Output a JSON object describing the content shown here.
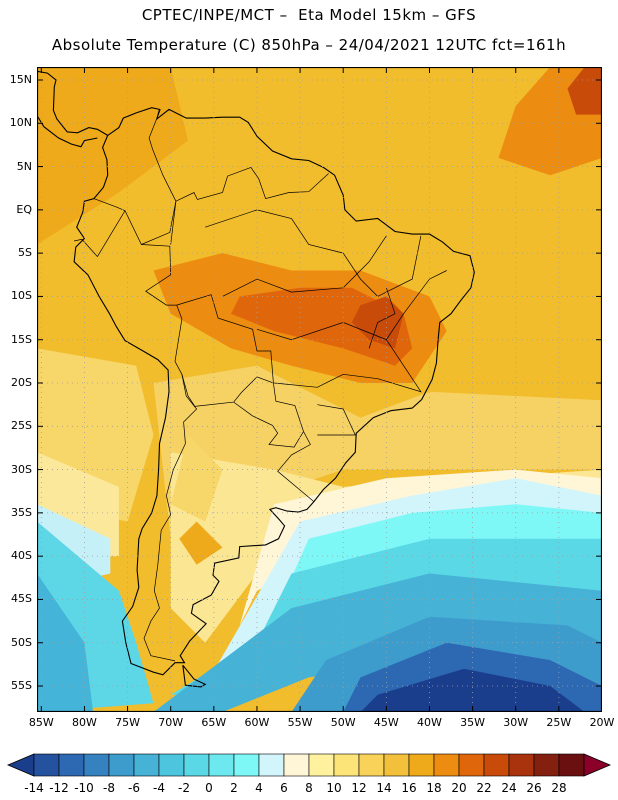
{
  "header": {
    "line1": "CPTEC/INPE/MCT –  Eta Model 15km – GFS",
    "line2": "Absolute Temperature (C) 850hPa – 24/04/2021 12UTC fct=161h"
  },
  "map": {
    "lat_labels": [
      "15N",
      "10N",
      "5N",
      "EQ",
      "5S",
      "10S",
      "15S",
      "20S",
      "25S",
      "30S",
      "35S",
      "40S",
      "45S",
      "50S",
      "55S"
    ],
    "lon_labels": [
      "85W",
      "80W",
      "75W",
      "70W",
      "65W",
      "60W",
      "55W",
      "50W",
      "45W",
      "40W",
      "35W",
      "30W",
      "25W",
      "20W"
    ],
    "lat_values": [
      15,
      10,
      5,
      0,
      -5,
      -10,
      -15,
      -20,
      -25,
      -30,
      -35,
      -40,
      -45,
      -50,
      -55
    ],
    "lon_values": [
      -85,
      -80,
      -75,
      -70,
      -65,
      -60,
      -55,
      -50,
      -45,
      -40,
      -35,
      -30,
      -25,
      -20
    ],
    "extent": {
      "lon_min": -85.5,
      "lon_max": -20,
      "lat_min": -58,
      "lat_max": 16.5
    }
  },
  "colorbar": {
    "labels": [
      "-14",
      "-12",
      "-10",
      "-8",
      "-6",
      "-4",
      "-2",
      "0",
      "2",
      "4",
      "6",
      "8",
      "10",
      "12",
      "14",
      "16",
      "18",
      "20",
      "22",
      "24",
      "26",
      "28"
    ],
    "colors": [
      "#1b3e8c",
      "#25529f",
      "#2d68b2",
      "#3682c1",
      "#3e9ccd",
      "#45b2d6",
      "#4ec5df",
      "#5ad8e6",
      "#6ce8ee",
      "#7ef8f6",
      "#d2f4fb",
      "#fff6d8",
      "#fff29e",
      "#fde478",
      "#f9d359",
      "#f3c03c",
      "#eeaa1a",
      "#ec8c10",
      "#e0660c",
      "#c84b0a",
      "#a8330c",
      "#842010",
      "#6a1010",
      "#8a0028"
    ]
  },
  "colors": {
    "coast": "#000000",
    "grid": "#a0a0a0"
  }
}
